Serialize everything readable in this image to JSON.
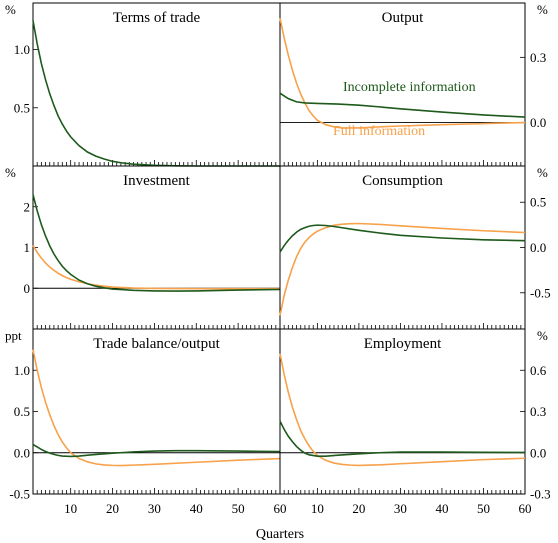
{
  "chart_data": {
    "type": "line",
    "xlabel": "Quarters",
    "x_axis": {
      "min": 1,
      "max": 60,
      "ticks": [
        10,
        20,
        30,
        40,
        50,
        60
      ]
    },
    "colors": {
      "incomplete": "#1d5a1b",
      "full": "#f7a14a"
    },
    "annotations": {
      "incomplete": "Incomplete information",
      "full": "Full information"
    },
    "panels": [
      {
        "key": "terms_of_trade",
        "title": "Terms of trade",
        "side": "left",
        "unit": "%",
        "ylim": [
          0,
          1.4
        ],
        "yticks": [
          {
            "v": 0.5,
            "l": "0.5"
          },
          {
            "v": 1.0,
            "l": "1.0"
          }
        ],
        "zero_line": false,
        "series": [
          {
            "kind": "incomplete",
            "points": [
              [
                1,
                1.25
              ],
              [
                2,
                1.05
              ],
              [
                3,
                0.88
              ],
              [
                4,
                0.74
              ],
              [
                5,
                0.62
              ],
              [
                6,
                0.52
              ],
              [
                7,
                0.43
              ],
              [
                8,
                0.36
              ],
              [
                9,
                0.3
              ],
              [
                10,
                0.25
              ],
              [
                12,
                0.175
              ],
              [
                14,
                0.12
              ],
              [
                16,
                0.085
              ],
              [
                18,
                0.06
              ],
              [
                20,
                0.04
              ],
              [
                22,
                0.028
              ],
              [
                25,
                0.016
              ],
              [
                30,
                0.006
              ],
              [
                35,
                0.002
              ],
              [
                40,
                0.0
              ],
              [
                50,
                0.0
              ],
              [
                60,
                0.0
              ]
            ]
          }
        ]
      },
      {
        "key": "output",
        "title": "Output",
        "side": "right",
        "unit": "%",
        "ylim": [
          -0.2,
          0.55
        ],
        "yticks": [
          {
            "v": 0.0,
            "l": "0.0"
          },
          {
            "v": 0.3,
            "l": "0.3"
          }
        ],
        "zero_line": true,
        "series": [
          {
            "kind": "full",
            "points": [
              [
                1,
                0.48
              ],
              [
                2,
                0.39
              ],
              [
                3,
                0.31
              ],
              [
                4,
                0.24
              ],
              [
                5,
                0.18
              ],
              [
                6,
                0.13
              ],
              [
                7,
                0.09
              ],
              [
                8,
                0.055
              ],
              [
                9,
                0.03
              ],
              [
                10,
                0.01
              ],
              [
                12,
                -0.01
              ],
              [
                14,
                -0.02
              ],
              [
                16,
                -0.025
              ],
              [
                20,
                -0.025
              ],
              [
                25,
                -0.02
              ],
              [
                30,
                -0.016
              ],
              [
                40,
                -0.01
              ],
              [
                50,
                -0.005
              ],
              [
                60,
                0.0
              ]
            ]
          },
          {
            "kind": "incomplete",
            "points": [
              [
                1,
                0.135
              ],
              [
                3,
                0.11
              ],
              [
                5,
                0.095
              ],
              [
                7,
                0.09
              ],
              [
                10,
                0.088
              ],
              [
                15,
                0.085
              ],
              [
                20,
                0.08
              ],
              [
                25,
                0.072
              ],
              [
                30,
                0.063
              ],
              [
                40,
                0.048
              ],
              [
                50,
                0.035
              ],
              [
                60,
                0.025
              ]
            ]
          }
        ]
      },
      {
        "key": "investment",
        "title": "Investment",
        "side": "left",
        "unit": "%",
        "ylim": [
          -1,
          3
        ],
        "yticks": [
          {
            "v": 0,
            "l": "0"
          },
          {
            "v": 1,
            "l": "1"
          },
          {
            "v": 2,
            "l": "2"
          }
        ],
        "zero_line": true,
        "series": [
          {
            "kind": "full",
            "points": [
              [
                1,
                1.05
              ],
              [
                2,
                0.88
              ],
              [
                3,
                0.74
              ],
              [
                4,
                0.62
              ],
              [
                5,
                0.52
              ],
              [
                6,
                0.44
              ],
              [
                7,
                0.37
              ],
              [
                8,
                0.31
              ],
              [
                9,
                0.26
              ],
              [
                10,
                0.22
              ],
              [
                12,
                0.16
              ],
              [
                14,
                0.11
              ],
              [
                16,
                0.075
              ],
              [
                18,
                0.05
              ],
              [
                20,
                0.03
              ],
              [
                25,
                0.005
              ],
              [
                30,
                -0.005
              ],
              [
                40,
                -0.01
              ],
              [
                50,
                -0.01
              ],
              [
                60,
                -0.01
              ]
            ]
          },
          {
            "kind": "incomplete",
            "points": [
              [
                1,
                2.3
              ],
              [
                2,
                1.9
              ],
              [
                3,
                1.56
              ],
              [
                4,
                1.28
              ],
              [
                5,
                1.04
              ],
              [
                6,
                0.84
              ],
              [
                7,
                0.68
              ],
              [
                8,
                0.54
              ],
              [
                9,
                0.43
              ],
              [
                10,
                0.34
              ],
              [
                12,
                0.2
              ],
              [
                14,
                0.11
              ],
              [
                16,
                0.05
              ],
              [
                18,
                0.01
              ],
              [
                20,
                -0.02
              ],
              [
                25,
                -0.05
              ],
              [
                30,
                -0.065
              ],
              [
                35,
                -0.07
              ],
              [
                40,
                -0.065
              ],
              [
                50,
                -0.045
              ],
              [
                60,
                -0.03
              ]
            ]
          }
        ]
      },
      {
        "key": "consumption",
        "title": "Consumption",
        "side": "right",
        "unit": "%",
        "ylim": [
          -0.9,
          0.9
        ],
        "yticks": [
          {
            "v": -0.5,
            "l": "-0.5"
          },
          {
            "v": 0.0,
            "l": "0.0"
          },
          {
            "v": 0.5,
            "l": "0.5"
          }
        ],
        "zero_line": false,
        "series": [
          {
            "kind": "full",
            "points": [
              [
                1,
                -0.75
              ],
              [
                2,
                -0.53
              ],
              [
                3,
                -0.36
              ],
              [
                4,
                -0.22
              ],
              [
                5,
                -0.1
              ],
              [
                6,
                -0.01
              ],
              [
                7,
                0.06
              ],
              [
                8,
                0.11
              ],
              [
                9,
                0.15
              ],
              [
                10,
                0.18
              ],
              [
                12,
                0.22
              ],
              [
                14,
                0.245
              ],
              [
                16,
                0.258
              ],
              [
                18,
                0.263
              ],
              [
                20,
                0.265
              ],
              [
                25,
                0.255
              ],
              [
                30,
                0.24
              ],
              [
                40,
                0.21
              ],
              [
                50,
                0.185
              ],
              [
                60,
                0.165
              ]
            ]
          },
          {
            "kind": "incomplete",
            "points": [
              [
                1,
                -0.05
              ],
              [
                2,
                0.02
              ],
              [
                3,
                0.08
              ],
              [
                4,
                0.13
              ],
              [
                5,
                0.17
              ],
              [
                6,
                0.2
              ],
              [
                7,
                0.22
              ],
              [
                8,
                0.235
              ],
              [
                9,
                0.243
              ],
              [
                10,
                0.247
              ],
              [
                12,
                0.243
              ],
              [
                14,
                0.232
              ],
              [
                16,
                0.218
              ],
              [
                20,
                0.19
              ],
              [
                25,
                0.16
              ],
              [
                30,
                0.135
              ],
              [
                40,
                0.105
              ],
              [
                50,
                0.085
              ],
              [
                60,
                0.075
              ]
            ]
          }
        ]
      },
      {
        "key": "trade_balance",
        "title": "Trade balance/output",
        "side": "left",
        "unit": "ppt",
        "ylim": [
          -0.5,
          1.5
        ],
        "yticks": [
          {
            "v": -0.5,
            "l": "-0.5"
          },
          {
            "v": 0.0,
            "l": "0.0"
          },
          {
            "v": 0.5,
            "l": "0.5"
          },
          {
            "v": 1.0,
            "l": "1.0"
          }
        ],
        "zero_line": true,
        "series": [
          {
            "kind": "full",
            "points": [
              [
                1,
                1.25
              ],
              [
                2,
                1.0
              ],
              [
                3,
                0.79
              ],
              [
                4,
                0.61
              ],
              [
                5,
                0.46
              ],
              [
                6,
                0.33
              ],
              [
                7,
                0.22
              ],
              [
                8,
                0.13
              ],
              [
                9,
                0.06
              ],
              [
                10,
                0.0
              ],
              [
                12,
                -0.07
              ],
              [
                14,
                -0.11
              ],
              [
                16,
                -0.135
              ],
              [
                18,
                -0.148
              ],
              [
                20,
                -0.153
              ],
              [
                22,
                -0.155
              ],
              [
                25,
                -0.15
              ],
              [
                30,
                -0.14
              ],
              [
                40,
                -0.115
              ],
              [
                50,
                -0.09
              ],
              [
                60,
                -0.07
              ]
            ]
          },
          {
            "kind": "incomplete",
            "points": [
              [
                1,
                0.1
              ],
              [
                2,
                0.07
              ],
              [
                3,
                0.04
              ],
              [
                4,
                0.015
              ],
              [
                5,
                -0.005
              ],
              [
                6,
                -0.02
              ],
              [
                7,
                -0.032
              ],
              [
                8,
                -0.04
              ],
              [
                10,
                -0.045
              ],
              [
                12,
                -0.04
              ],
              [
                15,
                -0.025
              ],
              [
                20,
                -0.005
              ],
              [
                25,
                0.01
              ],
              [
                30,
                0.02
              ],
              [
                35,
                0.025
              ],
              [
                40,
                0.025
              ],
              [
                50,
                0.02
              ],
              [
                60,
                0.015
              ]
            ]
          }
        ]
      },
      {
        "key": "employment",
        "title": "Employment",
        "side": "right",
        "unit": "%",
        "ylim": [
          -0.3,
          0.9
        ],
        "yticks": [
          {
            "v": -0.3,
            "l": "-0.3"
          },
          {
            "v": 0.0,
            "l": "0.0"
          },
          {
            "v": 0.3,
            "l": "0.3"
          },
          {
            "v": 0.6,
            "l": "0.6"
          }
        ],
        "zero_line": true,
        "series": [
          {
            "kind": "full",
            "points": [
              [
                1,
                0.72
              ],
              [
                2,
                0.57
              ],
              [
                3,
                0.44
              ],
              [
                4,
                0.33
              ],
              [
                5,
                0.24
              ],
              [
                6,
                0.16
              ],
              [
                7,
                0.1
              ],
              [
                8,
                0.05
              ],
              [
                9,
                0.01
              ],
              [
                10,
                -0.02
              ],
              [
                12,
                -0.055
              ],
              [
                14,
                -0.075
              ],
              [
                16,
                -0.085
              ],
              [
                18,
                -0.09
              ],
              [
                20,
                -0.092
              ],
              [
                25,
                -0.088
              ],
              [
                30,
                -0.08
              ],
              [
                40,
                -0.065
              ],
              [
                50,
                -0.05
              ],
              [
                60,
                -0.04
              ]
            ]
          },
          {
            "kind": "incomplete",
            "points": [
              [
                1,
                0.23
              ],
              [
                2,
                0.17
              ],
              [
                3,
                0.12
              ],
              [
                4,
                0.08
              ],
              [
                5,
                0.045
              ],
              [
                6,
                0.018
              ],
              [
                7,
                -0.003
              ],
              [
                8,
                -0.015
              ],
              [
                10,
                -0.025
              ],
              [
                12,
                -0.025
              ],
              [
                15,
                -0.018
              ],
              [
                20,
                -0.008
              ],
              [
                25,
                0.0
              ],
              [
                30,
                0.005
              ],
              [
                40,
                0.005
              ],
              [
                50,
                0.003
              ],
              [
                60,
                0.002
              ]
            ]
          }
        ]
      }
    ]
  }
}
